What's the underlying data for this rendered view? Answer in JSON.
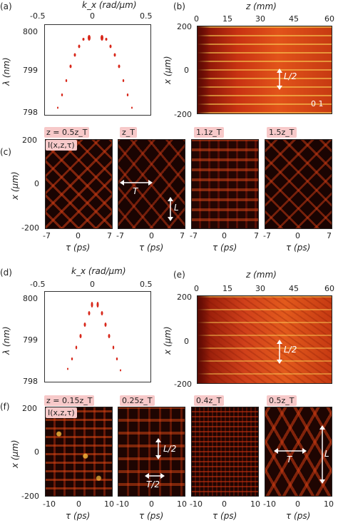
{
  "a": {
    "label": "(a)",
    "top_axis": "k_x (rad/μm)",
    "top_ticks": [
      "-0.5",
      "0",
      "0.5"
    ],
    "left_axis": "λ (nm)",
    "left_ticks": [
      "800",
      "799",
      "798"
    ]
  },
  "b": {
    "label": "(b)",
    "top_axis": "z (mm)",
    "top_ticks": [
      "0",
      "15",
      "30",
      "45",
      "60"
    ],
    "left_axis": "x (μm)",
    "left_ticks": [
      "200",
      "0",
      "-200"
    ],
    "annotation": "L/2",
    "colorbar": "0   1"
  },
  "c": {
    "label": "(c)",
    "panel_tags": [
      "z = 0.5z_T",
      "z_T",
      "1.1z_T",
      "1.5z_T"
    ],
    "inset_tag": "I(x,z,τ)",
    "left_axis": "x (μm)",
    "left_ticks": [
      "200",
      "0",
      "-200"
    ],
    "bottom_axis": "τ (ps)",
    "bottom_ticks": [
      "-7",
      "0",
      "7"
    ],
    "annotation_T": "T",
    "annotation_L": "L"
  },
  "d": {
    "label": "(d)",
    "top_axis": "k_x (rad/μm)",
    "top_ticks": [
      "-0.5",
      "0",
      "0.5"
    ],
    "left_axis": "λ (nm)",
    "left_ticks": [
      "800",
      "799",
      "798"
    ]
  },
  "e": {
    "label": "(e)",
    "top_axis": "z (mm)",
    "top_ticks": [
      "0",
      "15",
      "30",
      "45",
      "60"
    ],
    "left_axis": "x (μm)",
    "left_ticks": [
      "200",
      "0",
      "-200"
    ],
    "annotation": "L/2"
  },
  "f": {
    "label": "(f)",
    "panel_tags": [
      "z = 0.15z_T",
      "0.25z_T",
      "0.4z_T",
      "0.5z_T"
    ],
    "inset_tag": "I(x,z,τ)",
    "left_axis": "x (μm)",
    "left_ticks": [
      "200",
      "0",
      "-200"
    ],
    "bottom_axis": "τ (ps)",
    "bottom_ticks": [
      "-10",
      "0",
      "10"
    ],
    "annotation_L2": "L/2",
    "annotation_T2": "T/2",
    "annotation_T": "T",
    "annotation_L": "L"
  }
}
